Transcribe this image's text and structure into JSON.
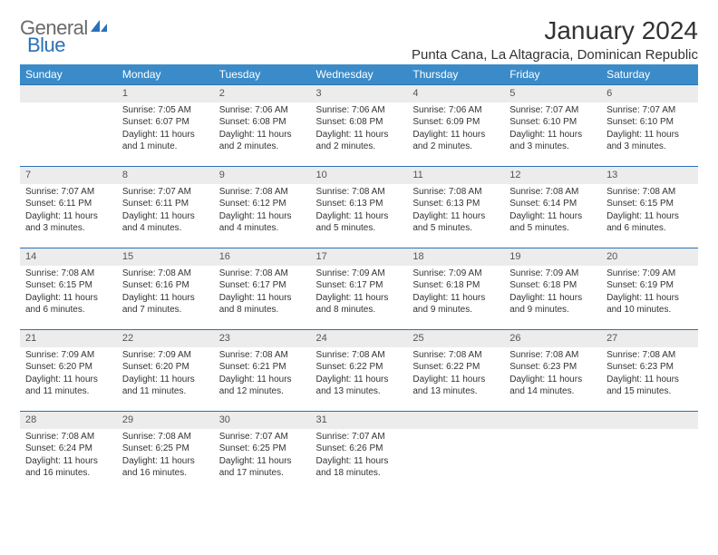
{
  "logo": {
    "textGeneral": "General",
    "textBlue": "Blue"
  },
  "title": "January 2024",
  "location": "Punta Cana, La Altagracia, Dominican Republic",
  "colors": {
    "header_bg": "#3b8bc9",
    "border": "#2a71b8",
    "daynum_bg": "#ececec",
    "logo_gray": "#6a6a6a",
    "logo_blue": "#2a71b8"
  },
  "weekdays": [
    "Sunday",
    "Monday",
    "Tuesday",
    "Wednesday",
    "Thursday",
    "Friday",
    "Saturday"
  ],
  "weeks": [
    [
      {
        "num": "",
        "sunrise": "",
        "sunset": "",
        "daylight": ""
      },
      {
        "num": "1",
        "sunrise": "Sunrise: 7:05 AM",
        "sunset": "Sunset: 6:07 PM",
        "daylight": "Daylight: 11 hours and 1 minute."
      },
      {
        "num": "2",
        "sunrise": "Sunrise: 7:06 AM",
        "sunset": "Sunset: 6:08 PM",
        "daylight": "Daylight: 11 hours and 2 minutes."
      },
      {
        "num": "3",
        "sunrise": "Sunrise: 7:06 AM",
        "sunset": "Sunset: 6:08 PM",
        "daylight": "Daylight: 11 hours and 2 minutes."
      },
      {
        "num": "4",
        "sunrise": "Sunrise: 7:06 AM",
        "sunset": "Sunset: 6:09 PM",
        "daylight": "Daylight: 11 hours and 2 minutes."
      },
      {
        "num": "5",
        "sunrise": "Sunrise: 7:07 AM",
        "sunset": "Sunset: 6:10 PM",
        "daylight": "Daylight: 11 hours and 3 minutes."
      },
      {
        "num": "6",
        "sunrise": "Sunrise: 7:07 AM",
        "sunset": "Sunset: 6:10 PM",
        "daylight": "Daylight: 11 hours and 3 minutes."
      }
    ],
    [
      {
        "num": "7",
        "sunrise": "Sunrise: 7:07 AM",
        "sunset": "Sunset: 6:11 PM",
        "daylight": "Daylight: 11 hours and 3 minutes."
      },
      {
        "num": "8",
        "sunrise": "Sunrise: 7:07 AM",
        "sunset": "Sunset: 6:11 PM",
        "daylight": "Daylight: 11 hours and 4 minutes."
      },
      {
        "num": "9",
        "sunrise": "Sunrise: 7:08 AM",
        "sunset": "Sunset: 6:12 PM",
        "daylight": "Daylight: 11 hours and 4 minutes."
      },
      {
        "num": "10",
        "sunrise": "Sunrise: 7:08 AM",
        "sunset": "Sunset: 6:13 PM",
        "daylight": "Daylight: 11 hours and 5 minutes."
      },
      {
        "num": "11",
        "sunrise": "Sunrise: 7:08 AM",
        "sunset": "Sunset: 6:13 PM",
        "daylight": "Daylight: 11 hours and 5 minutes."
      },
      {
        "num": "12",
        "sunrise": "Sunrise: 7:08 AM",
        "sunset": "Sunset: 6:14 PM",
        "daylight": "Daylight: 11 hours and 5 minutes."
      },
      {
        "num": "13",
        "sunrise": "Sunrise: 7:08 AM",
        "sunset": "Sunset: 6:15 PM",
        "daylight": "Daylight: 11 hours and 6 minutes."
      }
    ],
    [
      {
        "num": "14",
        "sunrise": "Sunrise: 7:08 AM",
        "sunset": "Sunset: 6:15 PM",
        "daylight": "Daylight: 11 hours and 6 minutes."
      },
      {
        "num": "15",
        "sunrise": "Sunrise: 7:08 AM",
        "sunset": "Sunset: 6:16 PM",
        "daylight": "Daylight: 11 hours and 7 minutes."
      },
      {
        "num": "16",
        "sunrise": "Sunrise: 7:08 AM",
        "sunset": "Sunset: 6:17 PM",
        "daylight": "Daylight: 11 hours and 8 minutes."
      },
      {
        "num": "17",
        "sunrise": "Sunrise: 7:09 AM",
        "sunset": "Sunset: 6:17 PM",
        "daylight": "Daylight: 11 hours and 8 minutes."
      },
      {
        "num": "18",
        "sunrise": "Sunrise: 7:09 AM",
        "sunset": "Sunset: 6:18 PM",
        "daylight": "Daylight: 11 hours and 9 minutes."
      },
      {
        "num": "19",
        "sunrise": "Sunrise: 7:09 AM",
        "sunset": "Sunset: 6:18 PM",
        "daylight": "Daylight: 11 hours and 9 minutes."
      },
      {
        "num": "20",
        "sunrise": "Sunrise: 7:09 AM",
        "sunset": "Sunset: 6:19 PM",
        "daylight": "Daylight: 11 hours and 10 minutes."
      }
    ],
    [
      {
        "num": "21",
        "sunrise": "Sunrise: 7:09 AM",
        "sunset": "Sunset: 6:20 PM",
        "daylight": "Daylight: 11 hours and 11 minutes."
      },
      {
        "num": "22",
        "sunrise": "Sunrise: 7:09 AM",
        "sunset": "Sunset: 6:20 PM",
        "daylight": "Daylight: 11 hours and 11 minutes."
      },
      {
        "num": "23",
        "sunrise": "Sunrise: 7:08 AM",
        "sunset": "Sunset: 6:21 PM",
        "daylight": "Daylight: 11 hours and 12 minutes."
      },
      {
        "num": "24",
        "sunrise": "Sunrise: 7:08 AM",
        "sunset": "Sunset: 6:22 PM",
        "daylight": "Daylight: 11 hours and 13 minutes."
      },
      {
        "num": "25",
        "sunrise": "Sunrise: 7:08 AM",
        "sunset": "Sunset: 6:22 PM",
        "daylight": "Daylight: 11 hours and 13 minutes."
      },
      {
        "num": "26",
        "sunrise": "Sunrise: 7:08 AM",
        "sunset": "Sunset: 6:23 PM",
        "daylight": "Daylight: 11 hours and 14 minutes."
      },
      {
        "num": "27",
        "sunrise": "Sunrise: 7:08 AM",
        "sunset": "Sunset: 6:23 PM",
        "daylight": "Daylight: 11 hours and 15 minutes."
      }
    ],
    [
      {
        "num": "28",
        "sunrise": "Sunrise: 7:08 AM",
        "sunset": "Sunset: 6:24 PM",
        "daylight": "Daylight: 11 hours and 16 minutes."
      },
      {
        "num": "29",
        "sunrise": "Sunrise: 7:08 AM",
        "sunset": "Sunset: 6:25 PM",
        "daylight": "Daylight: 11 hours and 16 minutes."
      },
      {
        "num": "30",
        "sunrise": "Sunrise: 7:07 AM",
        "sunset": "Sunset: 6:25 PM",
        "daylight": "Daylight: 11 hours and 17 minutes."
      },
      {
        "num": "31",
        "sunrise": "Sunrise: 7:07 AM",
        "sunset": "Sunset: 6:26 PM",
        "daylight": "Daylight: 11 hours and 18 minutes."
      },
      {
        "num": "",
        "sunrise": "",
        "sunset": "",
        "daylight": ""
      },
      {
        "num": "",
        "sunrise": "",
        "sunset": "",
        "daylight": ""
      },
      {
        "num": "",
        "sunrise": "",
        "sunset": "",
        "daylight": ""
      }
    ]
  ]
}
